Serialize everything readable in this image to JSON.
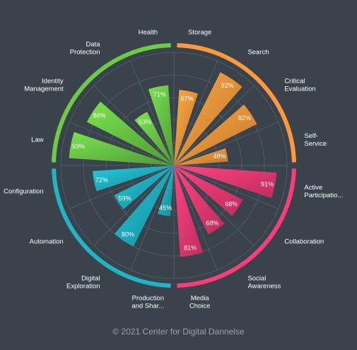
{
  "footer": {
    "copyright_symbol": "©",
    "text": "2021 Center for Digital Dannelse"
  },
  "chart_data": {
    "type": "polar-bar",
    "title": "",
    "rmax": 100,
    "grid": true,
    "groups": [
      {
        "name": "",
        "color": "#ff9a3c"
      },
      {
        "name": "",
        "color": "#ff3c78"
      },
      {
        "name": "",
        "color": "#1fb5c6"
      },
      {
        "name": "",
        "color": "#6ccc46"
      }
    ],
    "categories": [
      {
        "lines": [
          "Storage"
        ],
        "value": 67,
        "group": 0
      },
      {
        "lines": [
          "Search"
        ],
        "value": 92,
        "group": 0
      },
      {
        "lines": [
          "Critical",
          "Evaluation"
        ],
        "value": 82,
        "group": 0
      },
      {
        "lines": [
          "Self-",
          "Service"
        ],
        "value": 48,
        "group": 0
      },
      {
        "lines": [
          "Active",
          "Participatio..."
        ],
        "value": 91,
        "group": 1
      },
      {
        "lines": [
          "Collaboration"
        ],
        "value": 68,
        "group": 1
      },
      {
        "lines": [
          "Social",
          "Awareness"
        ],
        "value": 68,
        "group": 1
      },
      {
        "lines": [
          "Media",
          "Choice"
        ],
        "value": 81,
        "group": 1
      },
      {
        "lines": [
          "Production",
          "and Shar..."
        ],
        "value": 45,
        "group": 2
      },
      {
        "lines": [
          "Digital",
          "Exploration"
        ],
        "value": 80,
        "group": 2
      },
      {
        "lines": [
          "Automation"
        ],
        "value": 59,
        "group": 2
      },
      {
        "lines": [
          "Configuration"
        ],
        "value": 72,
        "group": 2
      },
      {
        "lines": [
          "Law"
        ],
        "value": 93,
        "group": 3
      },
      {
        "lines": [
          "Identity",
          "Management"
        ],
        "value": 86,
        "group": 3
      },
      {
        "lines": [
          "Data",
          "Protection"
        ],
        "value": 53,
        "group": 3
      },
      {
        "lines": [
          "Health"
        ],
        "value": 71,
        "group": 3
      }
    ]
  }
}
